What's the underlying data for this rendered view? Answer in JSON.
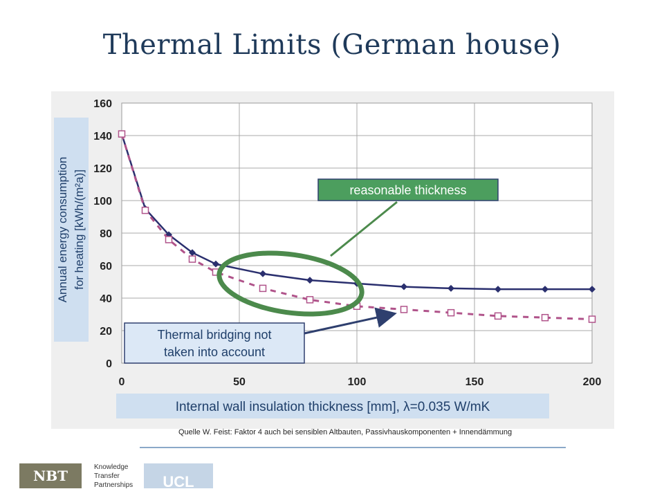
{
  "slide": {
    "title": "Thermal Limits (German house)",
    "source": "Quelle W. Feist: Faktor 4 auch bei sensiblen Altbauten, Passivhauskomponenten + Innendämmung",
    "logos": {
      "nbt": "NBT",
      "ktp": [
        "Knowledge",
        "Transfer",
        "Partnerships"
      ],
      "ucl": "UCL"
    }
  },
  "chart_data": {
    "type": "line",
    "xlabel": "Internal wall insulation thickness [mm], λ=0.035 W/mK",
    "ylabel_lines": [
      "Annual energy consumption",
      "for heating [kWh/(m²a)]"
    ],
    "xlim": [
      0,
      200
    ],
    "ylim": [
      0,
      160
    ],
    "x_ticks": [
      0,
      50,
      100,
      150,
      200
    ],
    "y_ticks": [
      0,
      20,
      40,
      60,
      80,
      100,
      120,
      140,
      160
    ],
    "grid": true,
    "series": [
      {
        "style": "solid",
        "color": "#2a2f6e",
        "marker": "diamond",
        "points": [
          [
            0,
            141
          ],
          [
            10,
            95
          ],
          [
            20,
            79
          ],
          [
            30,
            68
          ],
          [
            40,
            61
          ],
          [
            60,
            55
          ],
          [
            80,
            51
          ],
          [
            100,
            49
          ],
          [
            120,
            47
          ],
          [
            140,
            46
          ],
          [
            160,
            45.5
          ],
          [
            180,
            45.5
          ],
          [
            200,
            45.5
          ]
        ]
      },
      {
        "style": "dashed",
        "color": "#b0538a",
        "marker": "open-square",
        "points": [
          [
            0,
            141
          ],
          [
            10,
            94
          ],
          [
            20,
            76
          ],
          [
            30,
            64
          ],
          [
            40,
            56
          ],
          [
            60,
            46
          ],
          [
            80,
            39
          ],
          [
            100,
            35
          ],
          [
            120,
            33
          ],
          [
            140,
            31
          ],
          [
            160,
            29
          ],
          [
            180,
            28
          ],
          [
            200,
            27
          ]
        ]
      }
    ],
    "annotations": [
      {
        "name": "reasonable",
        "text": "reasonable thickness"
      },
      {
        "name": "bridging",
        "text_lines": [
          "Thermal bridging not",
          "taken into account"
        ]
      }
    ]
  }
}
